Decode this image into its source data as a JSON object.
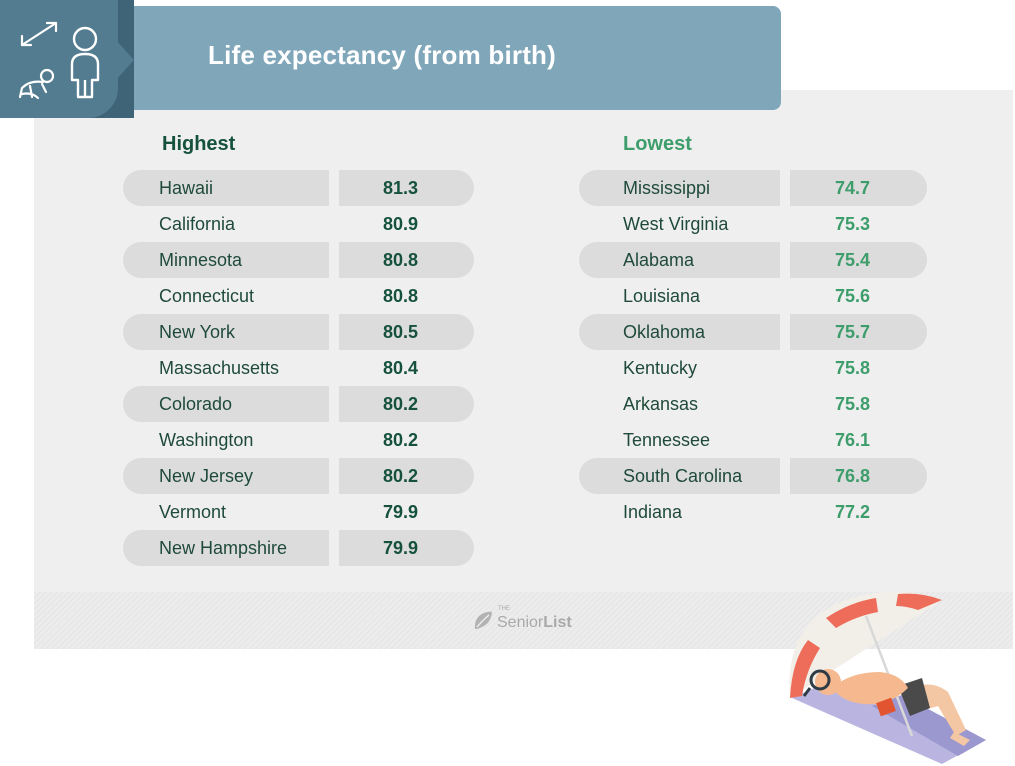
{
  "title": "Life expectancy (from birth)",
  "colors": {
    "header": "#7fa6b9",
    "badge": "#537c90",
    "highest_accent": "#15513d",
    "lowest_accent": "#3d9e6c"
  },
  "badge_icons": [
    "double-arrow-icon",
    "adult-person-icon",
    "crawling-baby-icon"
  ],
  "highest": {
    "heading": "Highest",
    "rows": [
      {
        "state": "Hawaii",
        "value": "81.3"
      },
      {
        "state": "California",
        "value": "80.9"
      },
      {
        "state": "Minnesota",
        "value": "80.8"
      },
      {
        "state": "Connecticut",
        "value": "80.8"
      },
      {
        "state": "New York",
        "value": "80.5"
      },
      {
        "state": "Massachusetts",
        "value": "80.4"
      },
      {
        "state": "Colorado",
        "value": "80.2"
      },
      {
        "state": "Washington",
        "value": "80.2"
      },
      {
        "state": "New Jersey",
        "value": "80.2"
      },
      {
        "state": "Vermont",
        "value": "79.9"
      },
      {
        "state": "New Hampshire",
        "value": "79.9"
      }
    ]
  },
  "lowest": {
    "heading": "Lowest",
    "rows": [
      {
        "state": "Mississippi",
        "value": "74.7"
      },
      {
        "state": "West Virginia",
        "value": "75.3"
      },
      {
        "state": "Alabama",
        "value": "75.4"
      },
      {
        "state": "Louisiana",
        "value": "75.6"
      },
      {
        "state": "Oklahoma",
        "value": "75.7"
      },
      {
        "state": "Kentucky",
        "value": "75.8"
      },
      {
        "state": "Arkansas",
        "value": "75.8"
      },
      {
        "state": "Tennessee",
        "value": "76.1"
      },
      {
        "state": "South Carolina",
        "value": "76.8"
      },
      {
        "state": "Indiana",
        "value": "77.2"
      }
    ]
  },
  "brand": {
    "the": "THE",
    "senior": "Senior",
    "list": "List"
  },
  "illustration": "person-sunbathing-under-umbrella"
}
